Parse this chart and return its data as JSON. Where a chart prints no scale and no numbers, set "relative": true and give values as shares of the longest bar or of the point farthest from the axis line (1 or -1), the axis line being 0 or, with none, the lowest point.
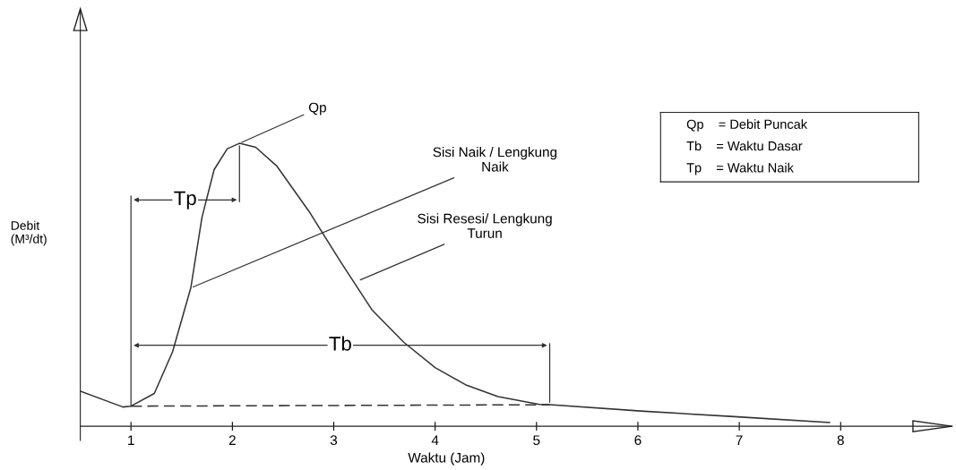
{
  "chart_data": {
    "type": "line",
    "relative": true,
    "xlabel": "Waktu (Jam)",
    "ylabel": "Debit\n(M³/dt)",
    "xlim": [
      0.5,
      9.1
    ],
    "xticks": [
      1,
      2,
      3,
      4,
      5,
      6,
      7,
      8
    ],
    "tick_labels": "x",
    "grid": false,
    "marker": "none",
    "series": [
      {
        "color": "#333333",
        "line_style": "solid",
        "x": [
          0.5,
          0.92,
          1.0,
          1.23,
          1.41,
          1.59,
          1.7,
          1.82,
          1.95,
          2.07,
          2.23,
          2.44,
          2.755,
          3.07,
          3.38,
          3.69,
          4.0,
          4.31,
          4.62,
          5.03,
          5.13,
          6.06,
          6.95,
          7.89
        ],
        "values": [
          0.124,
          0.068,
          0.071,
          0.116,
          0.263,
          0.489,
          0.738,
          0.907,
          0.981,
          1,
          0.986,
          0.919,
          0.76,
          0.58,
          0.41,
          0.297,
          0.207,
          0.145,
          0.105,
          0.077,
          0.076,
          0.053,
          0.034,
          0.013
        ]
      },
      {
        "color": "#333333",
        "line_style": "dashed",
        "x": [
          1.0,
          5.13
        ],
        "values": [
          0.071,
          0.076
        ]
      }
    ],
    "ref_lines": [
      {
        "axis": "x",
        "value": 1.0,
        "color": "#333333"
      }
    ],
    "annotations": [
      {
        "text": "Qp",
        "x": 2.07,
        "y": 1
      },
      {
        "text": "Tp",
        "x": 1.535,
        "y": 0.8
      },
      {
        "text": "Tb",
        "x": 3.065,
        "y": 0.286
      },
      {
        "text": "Sisi Naik / Lengkung\nNaik",
        "x": 1.59,
        "y": 0.489
      },
      {
        "text": "Sisi Resesi/ Lengkung\nTurun",
        "x": 3.24,
        "y": 0.514
      },
      "Qp    = Debit Puncak",
      "Tb    = Waktu Dasar",
      "Tp    = Waktu Naik"
    ]
  }
}
